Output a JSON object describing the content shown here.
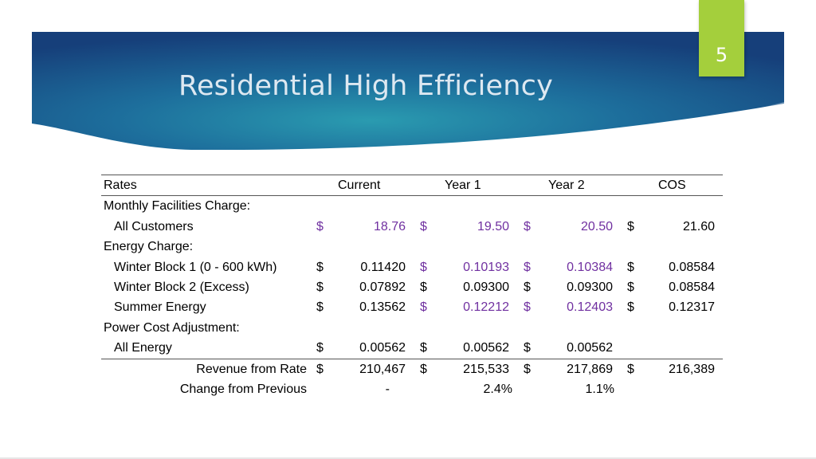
{
  "slide": {
    "number": "5",
    "title": "Residential High Efficiency",
    "accent_color": "#a4cf3c",
    "highlight_color": "#7030a0"
  },
  "table": {
    "headers": [
      "Rates",
      "Current",
      "Year 1",
      "Year 2",
      "COS"
    ],
    "rows": [
      {
        "label": "Monthly Facilities Charge:"
      },
      {
        "label": "All Customers",
        "cells": [
          {
            "d": "$",
            "v": "18.76",
            "hl": true
          },
          {
            "d": "$",
            "v": "19.50",
            "hl": true
          },
          {
            "d": "$",
            "v": "20.50",
            "hl": true
          },
          {
            "d": "$",
            "v": "21.60",
            "hl": false
          }
        ]
      },
      {
        "label": "Energy Charge:"
      },
      {
        "label": "Winter Block 1 (0 - 600 kWh)",
        "cells": [
          {
            "d": "$",
            "v": "0.11420",
            "hl": false
          },
          {
            "d": "$",
            "v": "0.10193",
            "hl": true
          },
          {
            "d": "$",
            "v": "0.10384",
            "hl": true
          },
          {
            "d": "$",
            "v": "0.08584",
            "hl": false
          }
        ]
      },
      {
        "label": "Winter Block 2 (Excess)",
        "cells": [
          {
            "d": "$",
            "v": "0.07892",
            "hl": false
          },
          {
            "d": "$",
            "v": "0.09300",
            "hl": false
          },
          {
            "d": "$",
            "v": "0.09300",
            "hl": false
          },
          {
            "d": "$",
            "v": "0.08584",
            "hl": false
          }
        ]
      },
      {
        "label": "Summer Energy",
        "cells": [
          {
            "d": "$",
            "v": "0.13562",
            "hl": false
          },
          {
            "d": "$",
            "v": "0.12212",
            "hl": true
          },
          {
            "d": "$",
            "v": "0.12403",
            "hl": true
          },
          {
            "d": "$",
            "v": "0.12317",
            "hl": false
          }
        ]
      },
      {
        "label": "Power Cost Adjustment:"
      },
      {
        "label": "All Energy",
        "cells": [
          {
            "d": "$",
            "v": "0.00562",
            "hl": false
          },
          {
            "d": "$",
            "v": "0.00562",
            "hl": false
          },
          {
            "d": "$",
            "v": "0.00562",
            "hl": false
          },
          {
            "d": "",
            "v": "",
            "hl": false
          }
        ]
      }
    ],
    "revenue": {
      "label": "Revenue from Rate",
      "cells": [
        {
          "d": "$",
          "v": "210,467"
        },
        {
          "d": "$",
          "v": "215,533"
        },
        {
          "d": "$",
          "v": "217,869"
        },
        {
          "d": "$",
          "v": "216,389"
        }
      ]
    },
    "change": {
      "label": "Change from Previous",
      "current": "-",
      "year1": "2.4%",
      "year2": "1.1%"
    }
  }
}
